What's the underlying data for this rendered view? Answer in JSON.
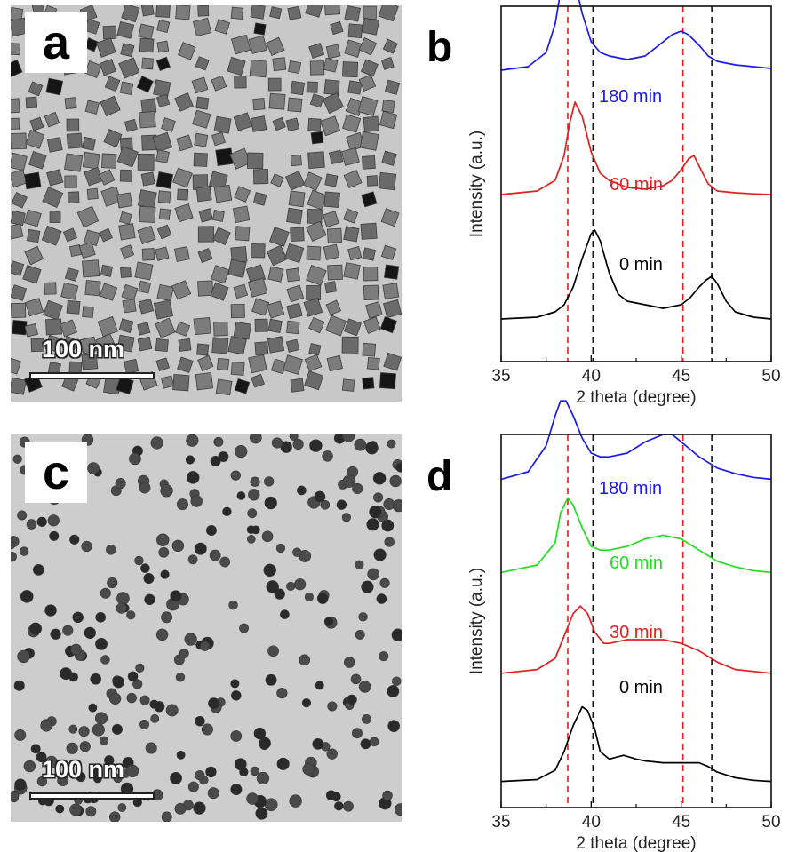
{
  "panels": {
    "a": {
      "label": "a",
      "scale_bar": "100 nm",
      "particle_shape": "cube",
      "particle_color": "#5a5a5a",
      "background_color": "#c8c8c8"
    },
    "b": {
      "label": "b"
    },
    "c": {
      "label": "c",
      "scale_bar": "100 nm",
      "particle_shape": "sphere",
      "particle_color": "#4a4a4a",
      "background_color": "#cdcdcd"
    },
    "d": {
      "label": "d"
    }
  },
  "chart_data": [
    {
      "id": "b",
      "type": "line",
      "title": "",
      "xlabel": "2 theta (degree)",
      "ylabel": "Intensity (a.u.)",
      "xlim": [
        35,
        50
      ],
      "xticks": [
        35,
        40,
        45,
        50
      ],
      "grid": false,
      "reference_lines": [
        {
          "x": 38.7,
          "color": "#e02020"
        },
        {
          "x": 40.1,
          "color": "#111111"
        },
        {
          "x": 45.1,
          "color": "#e02020"
        },
        {
          "x": 46.7,
          "color": "#111111"
        }
      ],
      "series": [
        {
          "name": "0 min",
          "color": "#000000",
          "baseline": 0.12,
          "x": [
            35,
            37,
            38,
            38.5,
            39,
            39.5,
            40,
            40.2,
            40.5,
            41,
            41.5,
            42,
            43,
            44,
            45,
            45.5,
            46,
            46.4,
            46.7,
            47,
            47.5,
            48,
            49,
            50
          ],
          "y": [
            0,
            0.005,
            0.02,
            0.04,
            0.09,
            0.17,
            0.24,
            0.25,
            0.22,
            0.13,
            0.07,
            0.05,
            0.04,
            0.03,
            0.04,
            0.06,
            0.09,
            0.11,
            0.12,
            0.1,
            0.05,
            0.02,
            0.005,
            0
          ]
        },
        {
          "name": "60 min",
          "color": "#e02020",
          "baseline": 0.47,
          "x": [
            35,
            37,
            38,
            38.5,
            38.8,
            39.1,
            39.5,
            40,
            40.5,
            41,
            42,
            43,
            44,
            44.5,
            45,
            45.4,
            45.7,
            46,
            46.5,
            47,
            48,
            49,
            50
          ],
          "y": [
            0,
            0.01,
            0.04,
            0.11,
            0.2,
            0.26,
            0.22,
            0.12,
            0.06,
            0.04,
            0.02,
            0.015,
            0.025,
            0.04,
            0.07,
            0.1,
            0.11,
            0.08,
            0.03,
            0.01,
            0.005,
            0.002,
            0
          ]
        },
        {
          "name": "180 min",
          "color": "#1a1aee",
          "baseline": 0.82,
          "x": [
            35,
            36.5,
            37.5,
            38,
            38.4,
            38.7,
            39,
            39.5,
            40,
            40.5,
            41,
            42,
            43,
            43.5,
            44,
            44.5,
            45,
            45.4,
            46,
            46.5,
            47,
            48,
            49,
            50
          ],
          "y": [
            0,
            0.01,
            0.05,
            0.13,
            0.25,
            0.31,
            0.27,
            0.16,
            0.08,
            0.05,
            0.04,
            0.03,
            0.04,
            0.06,
            0.08,
            0.1,
            0.11,
            0.1,
            0.07,
            0.04,
            0.025,
            0.015,
            0.01,
            0.005
          ]
        }
      ]
    },
    {
      "id": "d",
      "type": "line",
      "title": "",
      "xlabel": "2 theta (degree)",
      "ylabel": "Intensity (a.u.)",
      "xlim": [
        35,
        50
      ],
      "xticks": [
        35,
        40,
        45,
        50
      ],
      "grid": false,
      "reference_lines": [
        {
          "x": 38.7,
          "color": "#e02020"
        },
        {
          "x": 40.1,
          "color": "#111111"
        },
        {
          "x": 45.1,
          "color": "#e02020"
        },
        {
          "x": 46.7,
          "color": "#111111"
        }
      ],
      "series": [
        {
          "name": "0 min",
          "color": "#000000",
          "baseline": 0.07,
          "x": [
            35,
            37,
            38,
            38.5,
            39,
            39.5,
            39.8,
            40.2,
            40.5,
            41,
            41.8,
            42.5,
            43,
            44,
            45,
            46,
            46.5,
            47,
            48,
            49,
            50
          ],
          "y": [
            0,
            0.005,
            0.03,
            0.08,
            0.15,
            0.2,
            0.19,
            0.14,
            0.08,
            0.06,
            0.07,
            0.06,
            0.055,
            0.05,
            0.05,
            0.05,
            0.04,
            0.025,
            0.01,
            0.003,
            0
          ]
        },
        {
          "name": "30 min",
          "color": "#e02020",
          "baseline": 0.36,
          "x": [
            35,
            37,
            38,
            38.5,
            39,
            39.4,
            39.8,
            40.2,
            40.7,
            41,
            42,
            43,
            44,
            45,
            46,
            47,
            48,
            49,
            50
          ],
          "y": [
            0,
            0.01,
            0.04,
            0.1,
            0.16,
            0.18,
            0.16,
            0.11,
            0.08,
            0.08,
            0.09,
            0.09,
            0.09,
            0.08,
            0.06,
            0.03,
            0.01,
            0.005,
            0
          ]
        },
        {
          "name": "60 min",
          "color": "#22dd22",
          "baseline": 0.63,
          "x": [
            35,
            37,
            38,
            38.3,
            38.7,
            39,
            39.5,
            40,
            40.5,
            41,
            42,
            43,
            44,
            45,
            46,
            47,
            48,
            49,
            50
          ],
          "y": [
            0,
            0.02,
            0.08,
            0.16,
            0.2,
            0.18,
            0.12,
            0.07,
            0.06,
            0.06,
            0.07,
            0.09,
            0.1,
            0.09,
            0.06,
            0.03,
            0.015,
            0.005,
            0
          ]
        },
        {
          "name": "180 min",
          "color": "#1a1aee",
          "baseline": 0.88,
          "x": [
            35,
            36.5,
            37.5,
            38,
            38.3,
            38.6,
            39,
            39.5,
            40,
            40.5,
            41,
            42,
            43,
            44,
            44.5,
            45,
            46,
            47,
            48,
            49,
            50
          ],
          "y": [
            0,
            0.02,
            0.09,
            0.17,
            0.21,
            0.21,
            0.17,
            0.11,
            0.07,
            0.06,
            0.06,
            0.07,
            0.1,
            0.12,
            0.12,
            0.1,
            0.06,
            0.03,
            0.015,
            0.005,
            0
          ]
        }
      ]
    }
  ]
}
